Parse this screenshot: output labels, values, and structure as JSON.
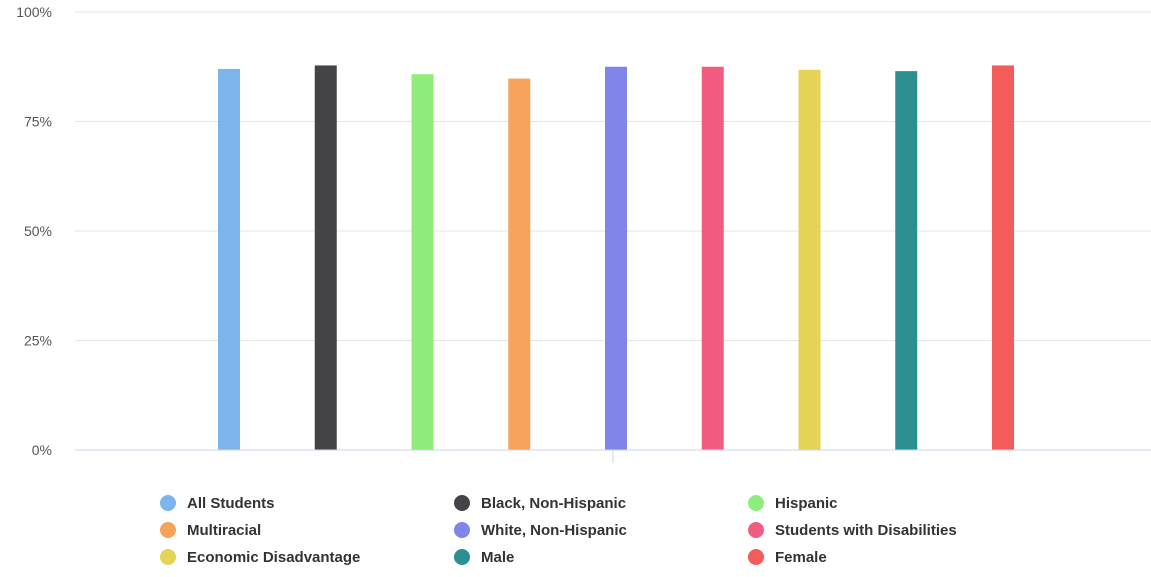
{
  "chart_data": {
    "type": "bar",
    "title": "",
    "xlabel": "",
    "ylabel": "",
    "ylim": [
      0,
      100
    ],
    "yticks": [
      "0%",
      "25%",
      "50%",
      "75%",
      "100%"
    ],
    "grid": true,
    "legend_position": "bottom",
    "series": [
      {
        "name": "All Students",
        "value": 87,
        "color": "#7cb5ec"
      },
      {
        "name": "Black, Non-Hispanic",
        "value": 87.8,
        "color": "#434348"
      },
      {
        "name": "Hispanic",
        "value": 85.8,
        "color": "#90ed7d"
      },
      {
        "name": "Multiracial",
        "value": 84.8,
        "color": "#f7a35c"
      },
      {
        "name": "White, Non-Hispanic",
        "value": 87.5,
        "color": "#8085e9"
      },
      {
        "name": "Students with Disabilities",
        "value": 87.5,
        "color": "#f15c80"
      },
      {
        "name": "Economic Disadvantage",
        "value": 86.8,
        "color": "#e4d354"
      },
      {
        "name": "Male",
        "value": 86.5,
        "color": "#2b908f"
      },
      {
        "name": "Female",
        "value": 87.8,
        "color": "#f45b5b"
      }
    ]
  }
}
